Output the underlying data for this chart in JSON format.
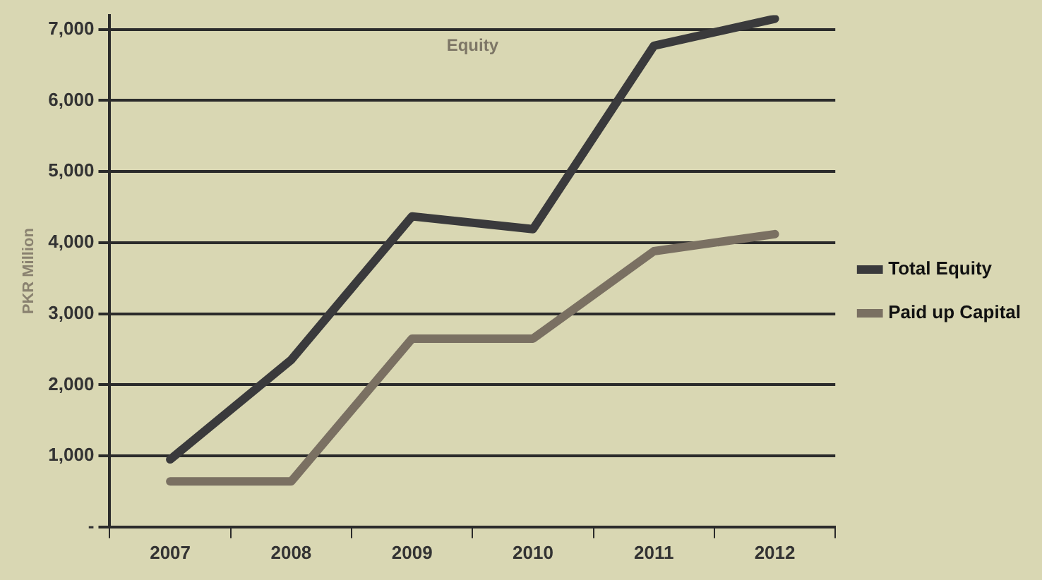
{
  "chart_data": {
    "type": "line",
    "title": "Equity",
    "ylabel": "PKR Million",
    "categories": [
      "2007",
      "2008",
      "2009",
      "2010",
      "2011",
      "2012"
    ],
    "series": [
      {
        "name": "Total Equity",
        "color": "#3a3a3c",
        "values": [
          950,
          2350,
          4370,
          4190,
          6770,
          7150
        ]
      },
      {
        "name": "Paid up Capital",
        "color": "#7a7062",
        "values": [
          640,
          640,
          2650,
          2650,
          3880,
          4120
        ]
      }
    ],
    "ylim": [
      0,
      7200
    ],
    "yticks": [
      {
        "value": 0,
        "label": "-"
      },
      {
        "value": 1000,
        "label": "1,000"
      },
      {
        "value": 2000,
        "label": "2,000"
      },
      {
        "value": 3000,
        "label": "3,000"
      },
      {
        "value": 4000,
        "label": "4,000"
      },
      {
        "value": 5000,
        "label": "5,000"
      },
      {
        "value": 6000,
        "label": "6,000"
      },
      {
        "value": 7000,
        "label": "7,000"
      }
    ],
    "grid": "y",
    "legend": "right",
    "marker": "none",
    "line_style": "solid"
  }
}
